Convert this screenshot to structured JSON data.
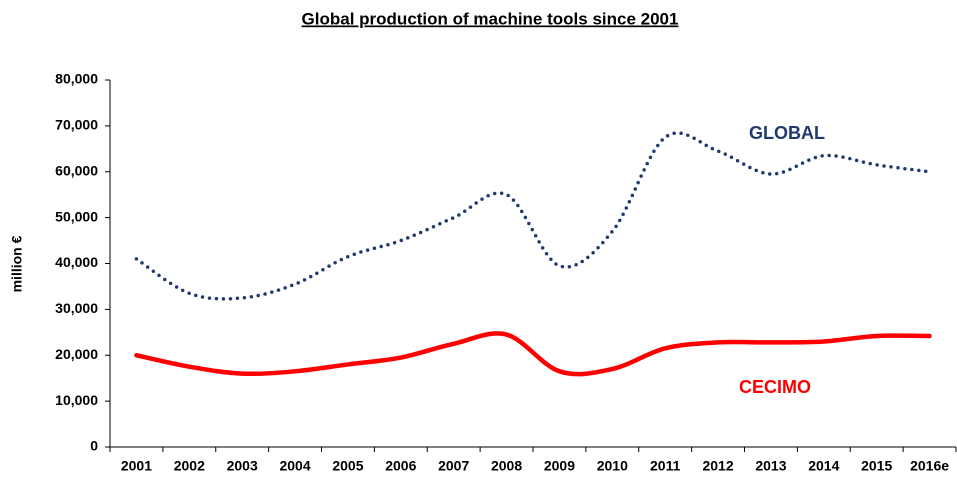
{
  "chart_data": {
    "type": "line",
    "title": "Global production of machine tools since 2001",
    "ylabel": "million €",
    "categories": [
      "2001",
      "2002",
      "2003",
      "2004",
      "2005",
      "2006",
      "2007",
      "2008",
      "2009",
      "2010",
      "2011",
      "2012",
      "2013",
      "2014",
      "2015",
      "2016e"
    ],
    "series": [
      {
        "name": "GLOBAL",
        "color": "#1f3a6e",
        "style": "dotted",
        "values": [
          41000,
          33500,
          32500,
          35500,
          41500,
          45000,
          50000,
          55000,
          39500,
          47000,
          67500,
          64500,
          59500,
          63500,
          61500,
          60000
        ]
      },
      {
        "name": "CECIMO",
        "color": "#ff0000",
        "style": "solid",
        "values": [
          20000,
          17500,
          16000,
          16500,
          18000,
          19500,
          22500,
          24500,
          16500,
          17000,
          21500,
          22800,
          22800,
          23000,
          24200,
          24200
        ]
      }
    ],
    "ylim": [
      0,
      80000
    ],
    "yticks": [
      0,
      {
        "value": 10000,
        "label": "10,000"
      },
      {
        "value": 20000,
        "label": "20,000"
      },
      {
        "value": 30000,
        "label": "30,000"
      },
      {
        "value": 40000,
        "label": "40,000"
      },
      {
        "value": 50000,
        "label": "50,000"
      },
      {
        "value": 60000,
        "label": "60,000"
      },
      {
        "value": 70000,
        "label": "70,000"
      },
      {
        "value": 80000,
        "label": "80,000"
      }
    ],
    "grid": false
  }
}
